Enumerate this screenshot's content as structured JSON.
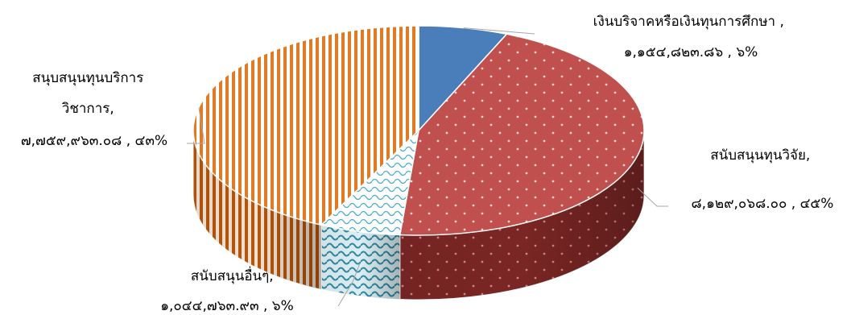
{
  "chart_data": {
    "type": "pie",
    "style": "3d",
    "title": "",
    "legend": "none",
    "slices": [
      {
        "name": "เงินบริจาคหรือเงินทุนการศึกษา",
        "value": 1154823.86,
        "value_label": "๑,๑๕๔,๘๒๓.๘๖",
        "percent": 6,
        "percent_label": "๖%",
        "label_lines": [
          "เงินบริจาคหรือเงินทุนการศึกษา ,",
          "๑,๑๕๔,๘๒๓.๘๖ , ๖%"
        ],
        "color": "#4a7ebb",
        "pattern": "solid"
      },
      {
        "name": "สนับสนุนทุนวิจัย",
        "value": 8129068.0,
        "value_label": "๘,๑๒๙,๐๖๘.๐๐",
        "percent": 45,
        "percent_label": "๔๕%",
        "label_lines": [
          "สนับสนุนทุนวิจัย,",
          "๘,๑๒๙,๐๖๘.๐๐ , ๔๕%"
        ],
        "color": "#c0504d",
        "pattern": "dots"
      },
      {
        "name": "สนับสนุนอื่นๆ",
        "value": 1044763.93,
        "value_label": "๑,๐๔๔,๗๖๓.๙๓",
        "percent": 6,
        "percent_label": "๖%",
        "label_lines": [
          "สนับสนุนอื่นๆ,",
          "๑,๐๔๔,๗๖๓.๙๓ , ๖%"
        ],
        "color": "#4bacc6",
        "pattern": "wave"
      },
      {
        "name": "สนุบสนุนทุนบริการวิชาการ",
        "value": 7759963.08,
        "value_label": "๗,๗๕๙,๙๖๓.๐๘",
        "percent": 43,
        "percent_label": "๔๓%",
        "label_lines": [
          "สนุบสนุนทุนบริการ",
          "วิชาการ,",
          "๗,๗๕๙,๙๖๓.๐๘ , ๔๓%"
        ],
        "color": "#e46c0a",
        "pattern": "vstripes"
      }
    ]
  }
}
